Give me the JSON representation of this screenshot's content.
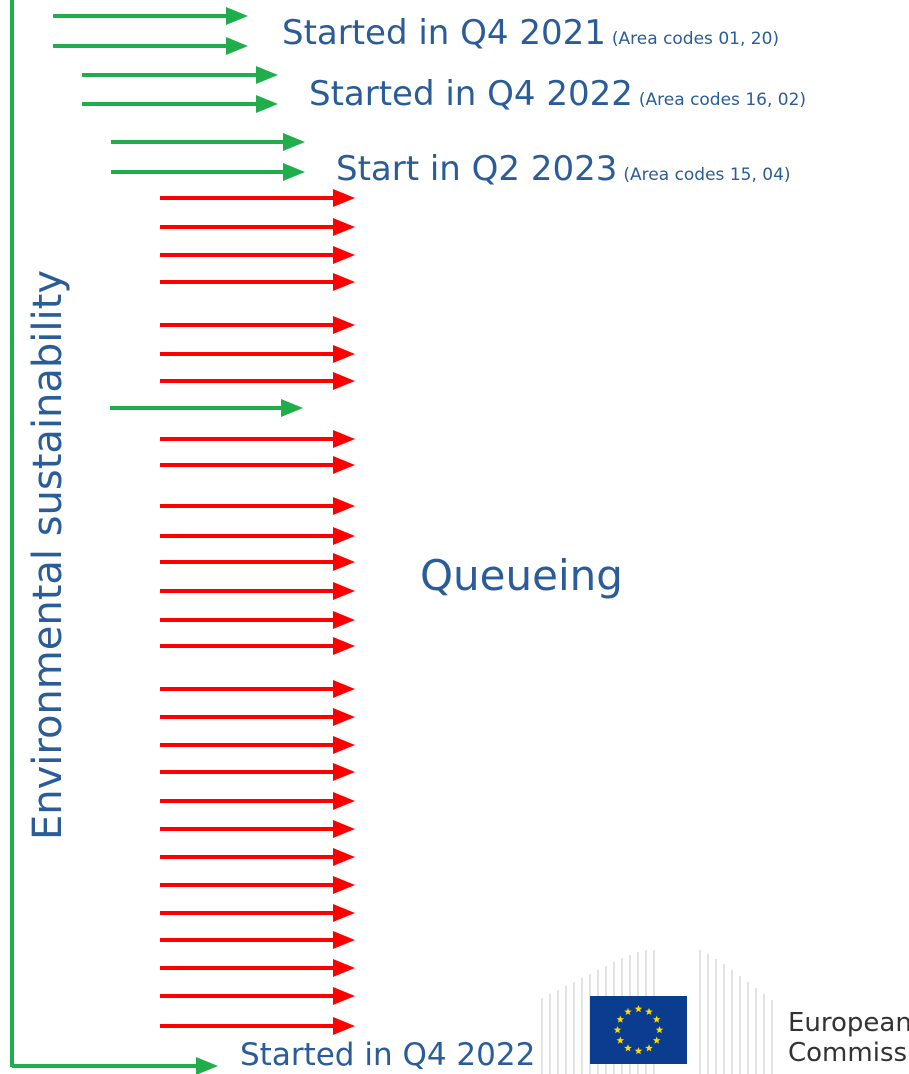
{
  "colors": {
    "green": "#1fae4b",
    "red": "#ff0000",
    "text": "#2b5c9a",
    "eu_blue": "#0a3c8f",
    "eu_star": "#ffdd00"
  },
  "labels": {
    "q4_2021": {
      "main": "Started in Q4 2021",
      "sub": "(Area codes 01, 20)"
    },
    "q4_2022": {
      "main": "Started in Q4 2022",
      "sub": "(Area codes 16, 02)"
    },
    "q2_2023": {
      "main": "Start in Q2 2023",
      "sub": "(Area codes 15, 04)"
    },
    "queueing": "Queueing",
    "bottom": "Started in Q4 2022",
    "vertical": "Environmental sustainability"
  },
  "logo": {
    "line1": "European",
    "line2": "Commission",
    "icon": "eu-flag-icon"
  }
}
